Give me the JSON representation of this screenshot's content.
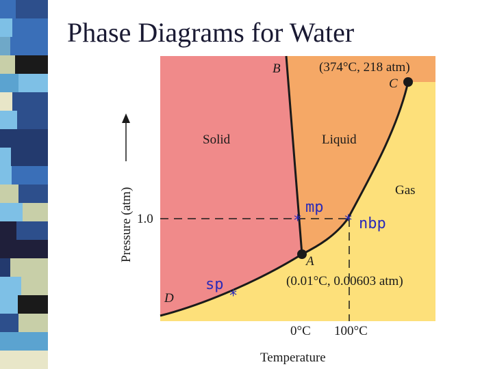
{
  "slide": {
    "title": "Phase Diagrams for Water"
  },
  "diagram": {
    "regions": {
      "solid": "Solid",
      "liquid": "Liquid",
      "gas": "Gas"
    },
    "points": {
      "B": "B",
      "C": "C",
      "A": "A",
      "D": "D",
      "critical_label": "(374°C, 218 atm)",
      "triple_label": "(0.01°C, 0.00603 atm)"
    },
    "axes": {
      "y_label": "Pressure (atm)",
      "x_label": "Temperature",
      "y_tick": "1.0",
      "x_tick_mp": "0°C",
      "x_tick_bp": "100°C"
    },
    "annotations": {
      "mp": "mp",
      "nbp": "nbp",
      "sp": "sp"
    },
    "colors": {
      "solid": "#f08a8a",
      "liquid": "#f5a866",
      "gas": "#fde07a",
      "star": "#2a2ab8",
      "curve": "#1a1a1a"
    }
  },
  "sidebar_strip": {
    "colors": [
      "#5ba3d0",
      "#2d4f8c",
      "#c8cfa8",
      "#1f1f3a",
      "#7ec0e6",
      "#3a6fb8",
      "#e8e6c8",
      "#1a1a1a",
      "#6fa8c8",
      "#233a6e"
    ]
  }
}
